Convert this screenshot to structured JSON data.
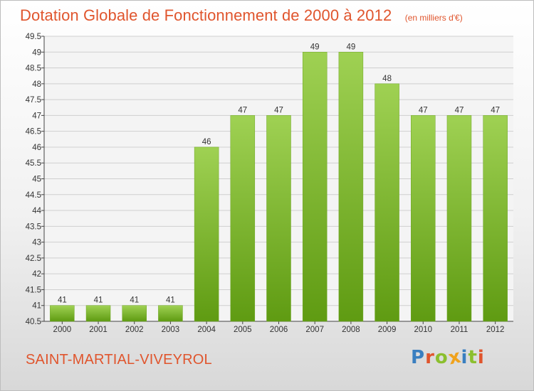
{
  "header": {
    "title": "Dotation Globale de Fonctionnement de 2000 à 2012",
    "subtitle": "(en milliers d'€)"
  },
  "footer": {
    "commune": "SAINT-MARTIAL-VIVEYROL",
    "logo_text": "Proxiti"
  },
  "colors": {
    "accent": "#e0552d",
    "bar_top": "#9fd153",
    "bar_bottom": "#5f9b12",
    "logo_letters": [
      "#3a7fc0",
      "#e0552d",
      "#8bbf2e",
      "#f0a21c",
      "#3a7fc0",
      "#8bbf2e",
      "#e0552d"
    ]
  },
  "chart_data": {
    "type": "bar",
    "title": "Dotation Globale de Fonctionnement de 2000 à 2012",
    "subtitle": "(en milliers d'€)",
    "xlabel": "",
    "ylabel": "",
    "categories": [
      "2000",
      "2001",
      "2002",
      "2003",
      "2004",
      "2005",
      "2006",
      "2007",
      "2008",
      "2009",
      "2010",
      "2011",
      "2012"
    ],
    "values": [
      41,
      41,
      41,
      41,
      46,
      47,
      47,
      49,
      49,
      48,
      47,
      47,
      47
    ],
    "ylim": [
      40.5,
      49.5
    ],
    "yticks": [
      "40.5",
      "41",
      "41.5",
      "42",
      "42.5",
      "43",
      "43.5",
      "44",
      "44.5",
      "45",
      "45.5",
      "46",
      "46.5",
      "47",
      "47.5",
      "48",
      "48.5",
      "49",
      "49.5"
    ],
    "grid": true,
    "legend": "none"
  }
}
